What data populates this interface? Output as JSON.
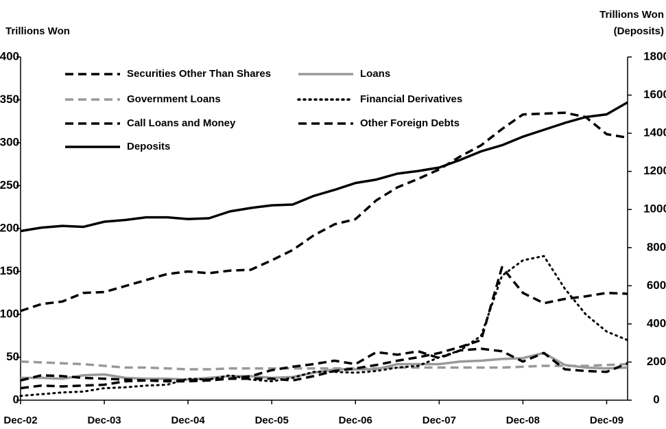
{
  "chart_data": {
    "type": "line",
    "ylabel": "Trillions Won",
    "y2label": [
      "Trillions Won",
      "(Deposits)"
    ],
    "categories": [
      "Dec-02",
      null,
      null,
      null,
      "Dec-03",
      null,
      null,
      null,
      "Dec-04",
      null,
      null,
      null,
      "Dec-05",
      null,
      null,
      null,
      "Dec-06",
      null,
      null,
      null,
      "Dec-07",
      null,
      null,
      null,
      "Dec-08",
      null,
      null,
      null,
      "Dec-09",
      null
    ],
    "ylim": [
      0,
      400
    ],
    "yticks": [
      0,
      50,
      100,
      150,
      200,
      250,
      300,
      350,
      400
    ],
    "y2lim": [
      0,
      1800
    ],
    "y2ticks": [
      0,
      200,
      400,
      600,
      800,
      1000,
      1200,
      1400,
      1600,
      1800
    ],
    "series": [
      {
        "name": "Securities Other Than Shares",
        "color": "#000000",
        "style": "dashed",
        "values": [
          104,
          112,
          115,
          125,
          126,
          133,
          140,
          147,
          150,
          148,
          151,
          152,
          163,
          175,
          192,
          205,
          211,
          233,
          248,
          258,
          269,
          284,
          297,
          316,
          333,
          334,
          335,
          330,
          310,
          306
        ]
      },
      {
        "name": "Loans",
        "color": "#999999",
        "style": "solid",
        "values": [
          26,
          26,
          25,
          29,
          30,
          26,
          25,
          25,
          24,
          26,
          28,
          28,
          26,
          27,
          32,
          36,
          36,
          36,
          42,
          42,
          42,
          45,
          46,
          48,
          49,
          55,
          41,
          38,
          37,
          38
        ]
      },
      {
        "name": "Government Loans",
        "color": "#999999",
        "style": "dashed",
        "values": [
          45,
          44,
          43,
          42,
          40,
          38,
          38,
          37,
          36,
          36,
          37,
          37,
          37,
          37,
          37,
          37,
          37,
          37,
          38,
          38,
          38,
          38,
          38,
          38,
          39,
          40,
          40,
          40,
          41,
          42
        ]
      },
      {
        "name": "Financial Derivatives",
        "color": "#000000",
        "style": "dotted",
        "values": [
          5,
          7,
          9,
          10,
          14,
          15,
          17,
          18,
          25,
          24,
          29,
          24,
          22,
          26,
          33,
          33,
          32,
          34,
          38,
          40,
          50,
          58,
          75,
          145,
          163,
          168,
          130,
          100,
          80,
          70
        ]
      },
      {
        "name": "Call Loans and Money",
        "color": "#000000",
        "style": "dashed",
        "values": [
          14,
          17,
          16,
          17,
          18,
          22,
          23,
          23,
          23,
          24,
          25,
          28,
          35,
          39,
          42,
          46,
          42,
          56,
          53,
          57,
          49,
          58,
          60,
          57,
          45,
          55,
          36,
          34,
          33,
          43
        ]
      },
      {
        "name": "Other Foreign Debts",
        "color": "#000000",
        "style": "dashed",
        "values": [
          23,
          29,
          28,
          26,
          25,
          24,
          23,
          22,
          22,
          23,
          25,
          25,
          25,
          23,
          28,
          34,
          37,
          41,
          46,
          50,
          55,
          62,
          70,
          155,
          125,
          113,
          118,
          121,
          125,
          124
        ]
      },
      {
        "name": "Deposits",
        "color": "#000000",
        "style": "solid",
        "axis": "y2",
        "values": [
          887,
          905,
          914,
          909,
          936,
          945,
          959,
          959,
          950,
          954,
          990,
          1008,
          1022,
          1026,
          1071,
          1103,
          1139,
          1157,
          1188,
          1202,
          1220,
          1260,
          1305,
          1337,
          1382,
          1418,
          1454,
          1485,
          1499,
          1562
        ]
      }
    ]
  }
}
